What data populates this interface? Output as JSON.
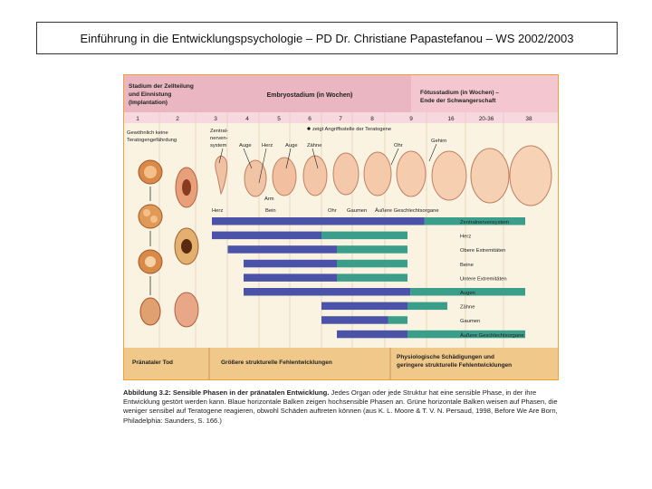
{
  "header": {
    "title": "Einführung in die Entwicklungspsychologie – PD Dr. Christiane Papastefanou – WS 2002/2003"
  },
  "colors": {
    "frame": "#f0a23a",
    "pink_header": "#e9b6c2",
    "fetal_header": "#f4c7d0",
    "sensitive_bar": "#4a53a8",
    "less_sensitive_bar": "#3a9e8a",
    "footer": "#f0c98a"
  },
  "figure": {
    "stage_headers": {
      "preimplant": [
        "Stadium der Zellteilung",
        "und Einnistung",
        "(Implantation)"
      ],
      "embryo": "Embryostadium (in Wochen)",
      "fetal": [
        "Fötusstadium (in Wochen) –",
        "Ende der Schwangerschaft"
      ]
    },
    "weeks": [
      "1",
      "2",
      "3",
      "4",
      "5",
      "6",
      "7",
      "8",
      "9",
      "16",
      "20-36",
      "38"
    ],
    "left_note": [
      "Gewöhnlich keine",
      "Teratogengefährdung"
    ],
    "legend_note": "zeigt Angriffsstelle der Teratogene",
    "organ_labels": {
      "zns": [
        "Zentral-",
        "nerven-",
        "system"
      ],
      "auge1": "Auge",
      "herz_top": "Herz",
      "auge2": "Auge",
      "zaehne": "Zähne",
      "ohr_top": "Ohr",
      "gehirn": "Gehirn",
      "arm": "Arm",
      "herz_bottom": "Herz",
      "bein": "Bein",
      "ohr_bottom": "Ohr",
      "gaumen": "Gaumen",
      "genitalien": "Äußere Geschlechtsorgane"
    },
    "bar_rows": [
      {
        "label": "Zentralnervensystem",
        "dark": [
          3,
          12
        ],
        "light": [
          12,
          38
        ]
      },
      {
        "label": "Herz",
        "dark": [
          3,
          6.5
        ],
        "light": [
          6.5,
          9
        ]
      },
      {
        "label": "Obere Extremitäten",
        "dark": [
          3.5,
          7
        ],
        "light": [
          7,
          9
        ]
      },
      {
        "label": "Beine",
        "dark": [
          4,
          7
        ],
        "light": [
          7,
          9
        ]
      },
      {
        "label": "Untere Extremitäten",
        "dark": [
          4,
          7
        ],
        "light": [
          7,
          9
        ]
      },
      {
        "label": "Augen",
        "dark": [
          4,
          9.5
        ],
        "light": [
          9.5,
          38
        ]
      },
      {
        "label": "Zähne",
        "dark": [
          6.5,
          9
        ],
        "light": [
          9,
          16
        ]
      },
      {
        "label": "Gaumen",
        "dark": [
          6.5,
          8.5
        ],
        "light": [
          8.5,
          9
        ]
      },
      {
        "label": "Äußere Geschlechtsorgane",
        "dark": [
          7,
          9
        ],
        "light": [
          9,
          38
        ]
      }
    ],
    "footer": {
      "left": "Pränataler Tod",
      "mid": "Größere strukturelle Fehlentwicklungen",
      "right": [
        "Physiologische Schädigungen und",
        "geringere strukturelle Fehlentwicklungen"
      ]
    }
  },
  "caption": {
    "bold": "Abbildung 3.2: Sensible Phasen in der pränatalen Entwicklung.",
    "text": " Jedes Organ oder jede Struktur hat eine sensible Phase, in der ihre Entwicklung gestört werden kann. Blaue horizontale Balken zeigen hochsensible Phasen an. Grüne horizontale Balken weisen auf Phasen, die weniger sensibel auf Teratogene reagieren, obwohl Schäden auftreten können (aus K. L. Moore & T. V. N. Persaud, 1998, Before We Are Born, Philadelphia: Saunders, S. 166.)"
  }
}
